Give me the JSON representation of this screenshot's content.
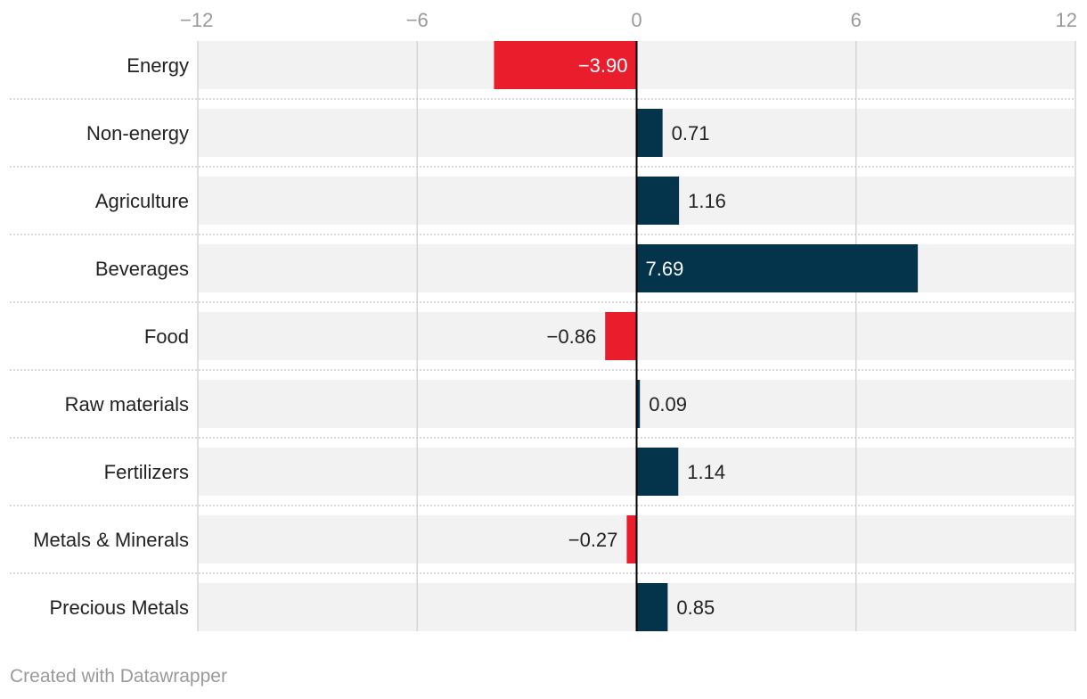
{
  "chart_data": {
    "type": "bar",
    "orientation": "horizontal",
    "categories": [
      "Energy",
      "Non-energy",
      "Agriculture",
      "Beverages",
      "Food",
      "Raw materials",
      "Fertilizers",
      "Metals & Minerals",
      "Precious Metals"
    ],
    "values": [
      -3.9,
      0.71,
      1.16,
      7.69,
      -0.86,
      0.09,
      1.14,
      -0.27,
      0.85
    ],
    "value_labels": [
      "−3.90",
      "0.71",
      "1.16",
      "7.69",
      "−0.86",
      "0.09",
      "1.14",
      "−0.27",
      "0.85"
    ],
    "xlim": [
      -12,
      12
    ],
    "ticks": [
      -12,
      -6,
      0,
      6,
      12
    ],
    "tick_labels": [
      "−12",
      "−6",
      "0",
      "6",
      "12"
    ],
    "grid": true,
    "colors": {
      "positive": "#04344b",
      "negative": "#ea1d2c",
      "row_background": "#f2f2f2",
      "grid": "#d6d6d6",
      "separator": "#c4c4c4",
      "zero_line": "#000000",
      "label_inside": "#ffffff",
      "label_outside": "#222222",
      "tick_text": "#9a9a9a"
    }
  },
  "footer": {
    "credit": "Created with Datawrapper"
  }
}
